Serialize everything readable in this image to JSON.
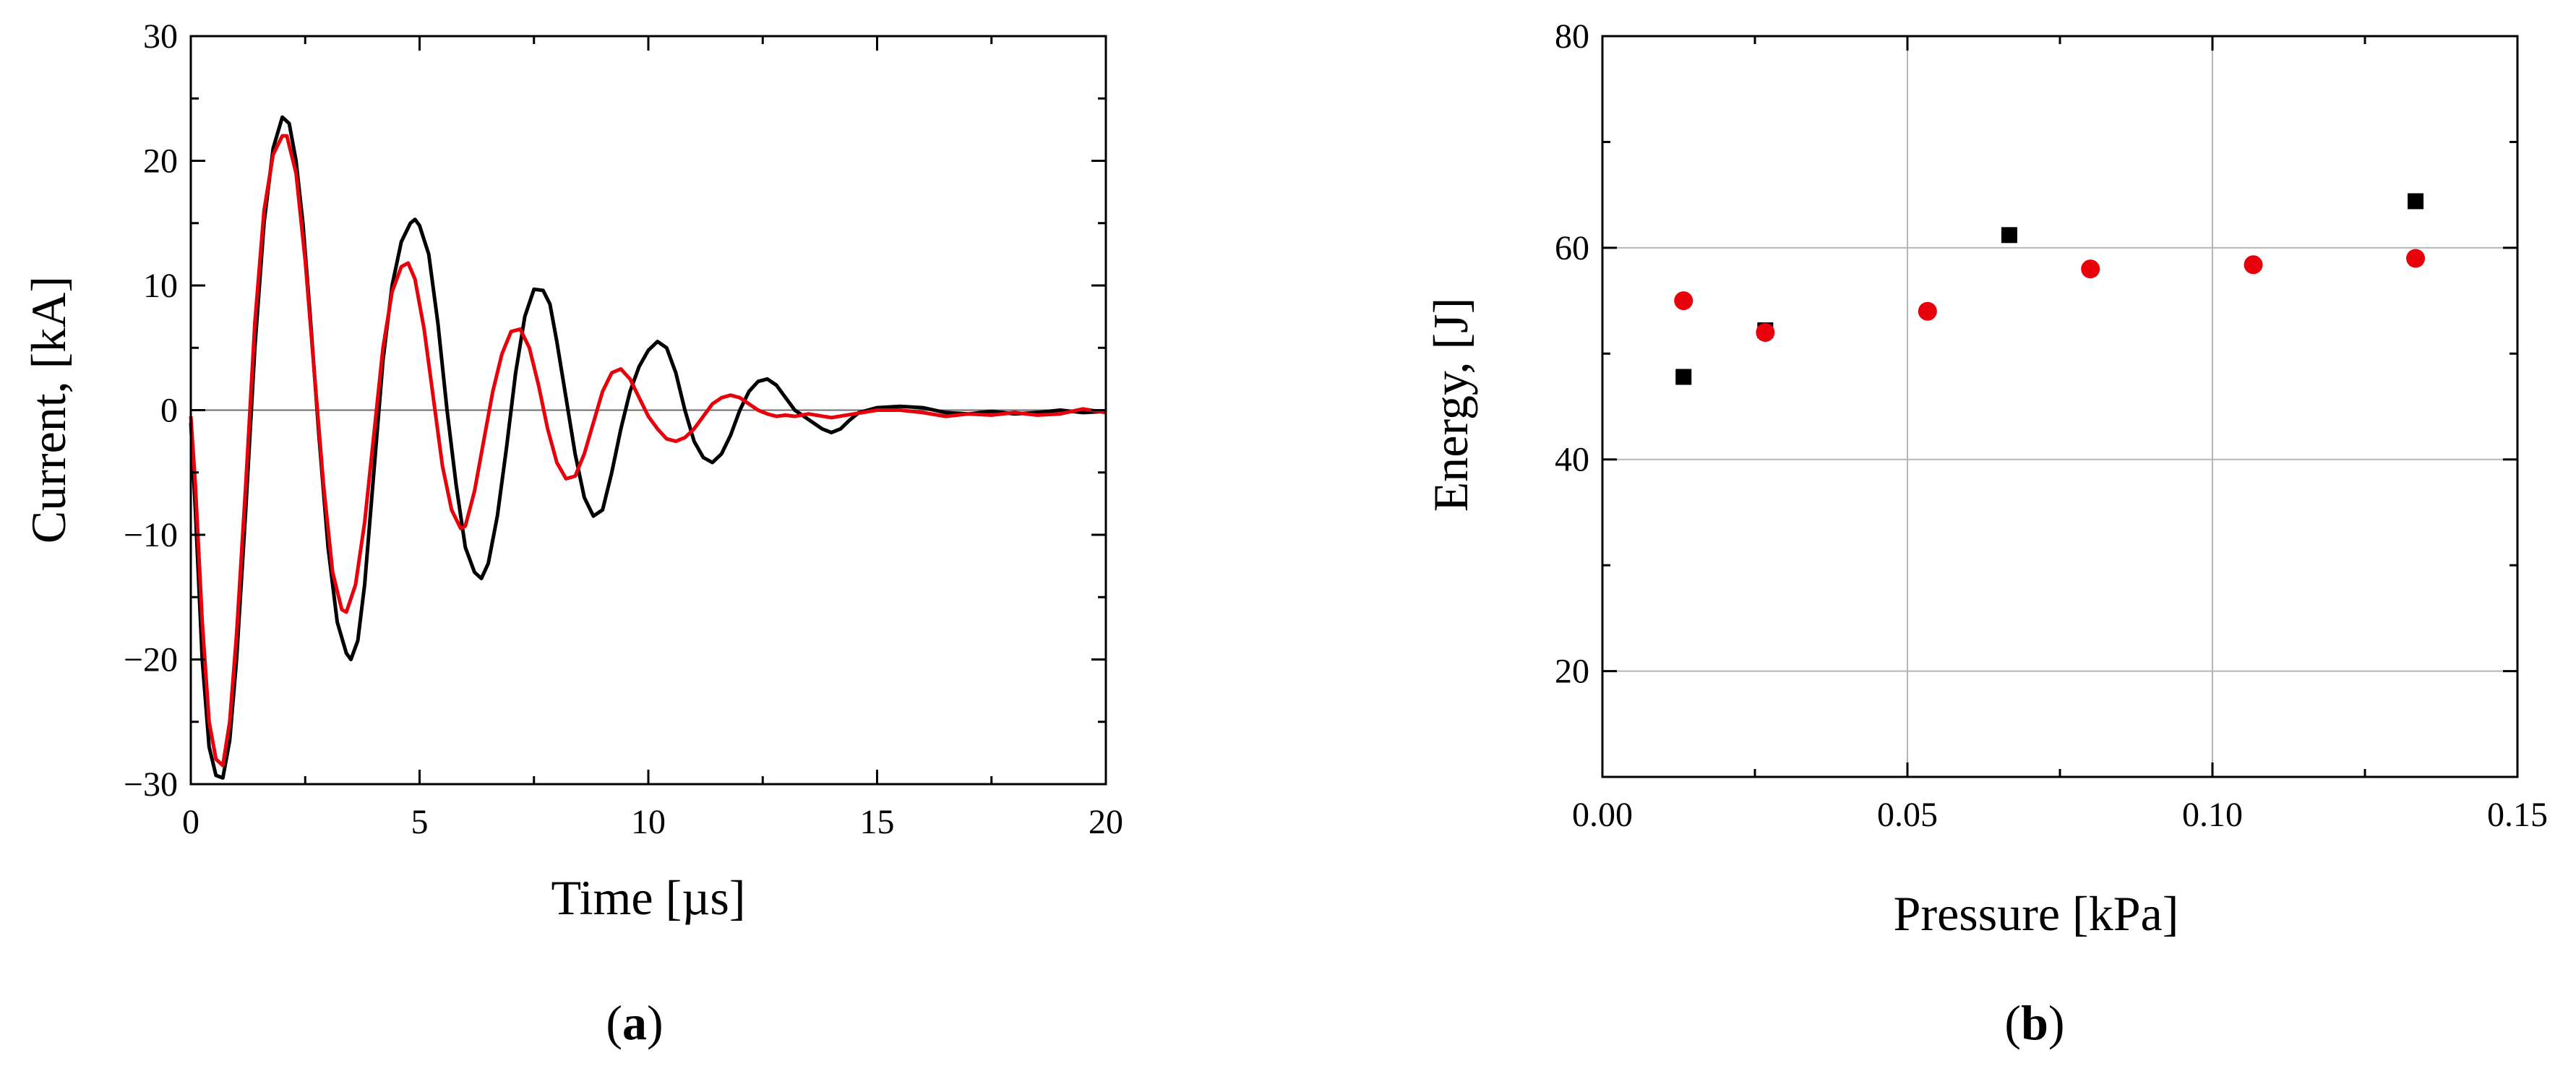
{
  "colors": {
    "series_black": "#000000",
    "series_red": "#e8000b",
    "grid": "#b5b5b5"
  },
  "chart_data": [
    {
      "type": "line",
      "caption": {
        "open": "(",
        "letter": "a",
        "close": ")"
      },
      "xlabel": "Time [µs]",
      "ylabel": "Current, [kA]",
      "xlim": [
        0,
        20
      ],
      "ylim": [
        -30,
        30
      ],
      "xticks": [
        0,
        5,
        10,
        15,
        20
      ],
      "yticks": [
        -30,
        -20,
        -10,
        0,
        10,
        20,
        30
      ],
      "xtick_labels": [
        "0",
        "5",
        "10",
        "15",
        "20"
      ],
      "ytick_labels": [
        "−30",
        "−20",
        "−10",
        "0",
        "10",
        "20",
        "30"
      ],
      "reference_line_y": 0,
      "series": [
        {
          "name": "black",
          "color": "#000000",
          "x": [
            0,
            0.1,
            0.25,
            0.4,
            0.55,
            0.7,
            0.85,
            1.0,
            1.2,
            1.4,
            1.6,
            1.8,
            2.0,
            2.15,
            2.3,
            2.45,
            2.6,
            2.8,
            3.0,
            3.2,
            3.4,
            3.5,
            3.65,
            3.8,
            4.0,
            4.2,
            4.4,
            4.6,
            4.8,
            4.9,
            5.0,
            5.2,
            5.4,
            5.6,
            5.8,
            6.0,
            6.2,
            6.35,
            6.5,
            6.7,
            6.9,
            7.1,
            7.3,
            7.5,
            7.7,
            7.85,
            8.0,
            8.2,
            8.4,
            8.6,
            8.8,
            9.0,
            9.2,
            9.4,
            9.6,
            9.8,
            10.0,
            10.2,
            10.4,
            10.6,
            10.8,
            11.0,
            11.2,
            11.4,
            11.6,
            11.8,
            12.0,
            12.2,
            12.4,
            12.6,
            12.8,
            13.0,
            13.2,
            13.4,
            13.6,
            13.8,
            14.0,
            14.2,
            14.4,
            14.6,
            14.8,
            15.0,
            15.5,
            16.0,
            16.5,
            17.0,
            17.5,
            18.0,
            18.5,
            19.0,
            19.5,
            20.0
          ],
          "y": [
            -1,
            -8,
            -20,
            -27,
            -29.3,
            -29.5,
            -26.5,
            -20,
            -8,
            5,
            15,
            21,
            23.5,
            23,
            20,
            15,
            8,
            -2,
            -11,
            -17,
            -19.5,
            -20,
            -18.5,
            -14,
            -5,
            4,
            10,
            13.5,
            15,
            15.3,
            14.8,
            12.5,
            7,
            0,
            -6,
            -11,
            -13,
            -13.5,
            -12.3,
            -8.5,
            -3,
            3,
            7.5,
            9.7,
            9.6,
            8.5,
            5.5,
            1,
            -3.5,
            -7,
            -8.5,
            -8,
            -5,
            -1.5,
            1.5,
            3.5,
            4.8,
            5.5,
            5,
            3,
            0,
            -2.5,
            -3.8,
            -4.2,
            -3.5,
            -2,
            0,
            1.5,
            2.3,
            2.5,
            2,
            1,
            0,
            -0.5,
            -1,
            -1.5,
            -1.8,
            -1.5,
            -0.8,
            -0.2,
            0,
            0.2,
            0.3,
            0.2,
            -0.2,
            -0.3,
            -0.1,
            -0.3,
            -0.2,
            0,
            -0.2,
            -0.1
          ]
        },
        {
          "name": "red",
          "color": "#e8000b",
          "x": [
            0,
            0.1,
            0.25,
            0.4,
            0.55,
            0.7,
            0.85,
            1.0,
            1.2,
            1.4,
            1.6,
            1.8,
            2.0,
            2.1,
            2.3,
            2.5,
            2.7,
            2.9,
            3.1,
            3.3,
            3.4,
            3.6,
            3.8,
            4.0,
            4.2,
            4.4,
            4.6,
            4.75,
            4.9,
            5.1,
            5.3,
            5.5,
            5.7,
            5.9,
            6.0,
            6.2,
            6.4,
            6.6,
            6.8,
            7.0,
            7.2,
            7.4,
            7.6,
            7.8,
            8.0,
            8.2,
            8.4,
            8.6,
            8.8,
            9.0,
            9.2,
            9.4,
            9.6,
            9.8,
            10.0,
            10.2,
            10.4,
            10.6,
            10.8,
            11.0,
            11.2,
            11.4,
            11.6,
            11.8,
            12.0,
            12.2,
            12.4,
            12.6,
            12.8,
            13.0,
            13.2,
            13.5,
            14.0,
            14.5,
            15.0,
            15.5,
            16.0,
            16.5,
            17.0,
            17.5,
            18.0,
            18.5,
            19.0,
            19.5,
            20.0
          ],
          "y": [
            -0.5,
            -6,
            -17,
            -25,
            -28,
            -28.5,
            -25,
            -18,
            -6,
            7,
            16,
            20.5,
            22,
            22,
            19,
            12,
            3,
            -6,
            -13,
            -16,
            -16.2,
            -14,
            -9,
            -2,
            5,
            9.5,
            11.5,
            11.8,
            10.5,
            6.5,
            1,
            -4.5,
            -8,
            -9.5,
            -9.3,
            -6.5,
            -2.5,
            1.5,
            4.5,
            6.3,
            6.5,
            5,
            2,
            -1.5,
            -4.2,
            -5.5,
            -5.3,
            -3.5,
            -1,
            1.5,
            3,
            3.3,
            2.5,
            1,
            -0.5,
            -1.5,
            -2.3,
            -2.5,
            -2.2,
            -1.5,
            -0.5,
            0.5,
            1,
            1.2,
            1,
            0.5,
            0,
            -0.3,
            -0.5,
            -0.4,
            -0.5,
            -0.3,
            -0.6,
            -0.3,
            0,
            0,
            -0.2,
            -0.5,
            -0.3,
            -0.4,
            -0.2,
            -0.4,
            -0.3,
            0.1,
            -0.2
          ]
        }
      ]
    },
    {
      "type": "scatter",
      "caption": {
        "open": "(",
        "letter": "b",
        "close": ")"
      },
      "xlabel": "Pressure [kPa]",
      "ylabel": "Energy, [J]",
      "xlim": [
        0,
        0.15
      ],
      "ylim": [
        10,
        80
      ],
      "xticks": [
        0,
        0.05,
        0.1,
        0.15
      ],
      "yticks": [
        20,
        40,
        60,
        80
      ],
      "xtick_labels": [
        "0.00",
        "0.05",
        "0.10",
        "0.15"
      ],
      "ytick_labels": [
        "20",
        "40",
        "60",
        "80"
      ],
      "grid": true,
      "series": [
        {
          "name": "black squares",
          "marker": "square",
          "color": "#000000",
          "x": [
            0.0133,
            0.0267,
            0.0667,
            0.1333
          ],
          "y": [
            47.8,
            52.2,
            61.2,
            64.4
          ]
        },
        {
          "name": "red circles",
          "marker": "circle",
          "color": "#e8000b",
          "x": [
            0.0133,
            0.0267,
            0.0533,
            0.08,
            0.1067,
            0.1333
          ],
          "y": [
            55,
            52,
            54,
            58,
            58.4,
            59
          ]
        }
      ]
    }
  ]
}
